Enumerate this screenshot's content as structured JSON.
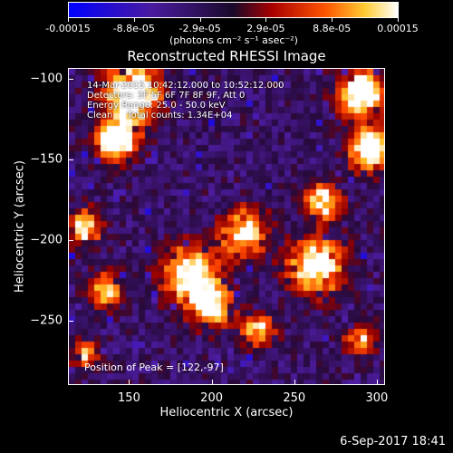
{
  "colorbar": {
    "labels": [
      "-0.00015",
      "-8.8e-05",
      "-2.9e-05",
      "2.9e-05",
      "8.8e-05",
      "0.00015"
    ],
    "unit": "(photons cm⁻² s⁻¹ asec⁻²)"
  },
  "chart_data": {
    "type": "heatmap",
    "title": "Reconstructed RHESSI Image",
    "xlabel": "Heliocentric X (arcsec)",
    "ylabel": "Heliocentric Y (arcsec)",
    "xlim": [
      113,
      305
    ],
    "ylim": [
      -290,
      -93
    ],
    "xticks": [
      150,
      200,
      250,
      300
    ],
    "yticks": [
      -100,
      -150,
      -200,
      -250
    ],
    "value_range": [
      -0.00015,
      0.00015
    ],
    "colormap": "blue-purple-red-yellow-white"
  },
  "annotations": {
    "line1": "14-Mar-2015 10:42:12.000 to 10:52:12.000",
    "line2": "Detectors: 3F 5F 6F 7F 8F 9F, Att 0",
    "line3": "Energy Range: 25.0 - 50.0 keV",
    "line4": "Clean     Total counts: 1.34E+04",
    "peak": "Position of Peak = [122,-97]"
  },
  "footer": "6-Sep-2017 18:41"
}
